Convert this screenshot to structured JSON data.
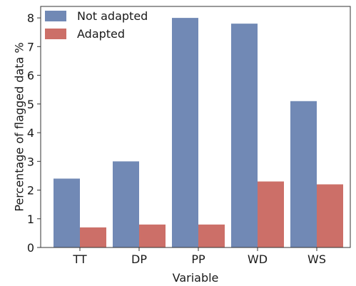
{
  "chart_data": {
    "type": "bar",
    "categories": [
      "TT",
      "DP",
      "PP",
      "WD",
      "WS"
    ],
    "series": [
      {
        "name": "Not adapted",
        "values": [
          2.4,
          3.0,
          8.0,
          7.8,
          5.1
        ]
      },
      {
        "name": "Adapted",
        "values": [
          0.7,
          0.8,
          0.8,
          2.3,
          2.2
        ]
      }
    ],
    "colors": [
      "#7189b5",
      "#cc6f68"
    ],
    "xlabel": "Variable",
    "ylabel": "Percentage of flagged data %",
    "ylim": [
      0,
      8.4
    ],
    "yticks": [
      0,
      1,
      2,
      3,
      4,
      5,
      6,
      7,
      8
    ],
    "legend_position": "top-left",
    "grid": false
  }
}
